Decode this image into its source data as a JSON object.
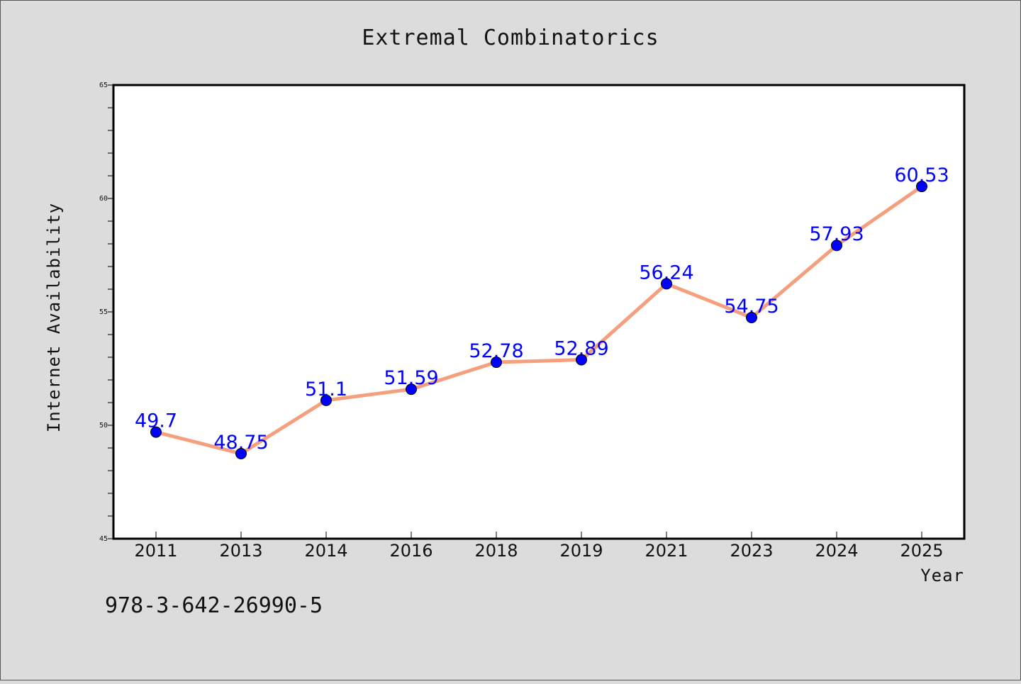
{
  "chart_data": {
    "type": "line",
    "title": "Extremal Combinatorics",
    "xlabel": "Year",
    "ylabel": "Internet Availability",
    "categories": [
      "2011",
      "2013",
      "2014",
      "2016",
      "2018",
      "2019",
      "2021",
      "2023",
      "2024",
      "2025"
    ],
    "series": [
      {
        "values": [
          49.7,
          48.75,
          51.1,
          51.59,
          52.78,
          52.89,
          56.24,
          54.75,
          57.93,
          60.53
        ],
        "line_color": "#f4a07e",
        "marker_color": "#0000ff"
      }
    ],
    "data_labels": [
      "49.7",
      "48.75",
      "51.1",
      "51.59",
      "52.78",
      "52.89",
      "56.24",
      "54.75",
      "57.93",
      "60.53"
    ],
    "ylim": [
      45,
      65
    ],
    "yticks": [
      "45",
      "50",
      "55",
      "60",
      "65"
    ],
    "grid": false,
    "legend": "none"
  },
  "annotation": {
    "text": "978-3-642-26990-5"
  },
  "colors": {
    "background": "#dcdcdc",
    "plot_background": "#ffffff",
    "line": "#f4a07e",
    "marker": "#0000ff",
    "data_label": "#0000ff"
  }
}
